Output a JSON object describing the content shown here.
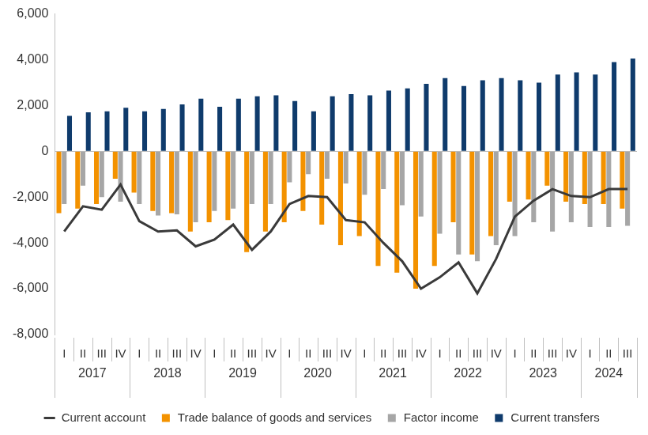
{
  "chart_data": {
    "type": "bar",
    "categories": [
      "I",
      "II",
      "III",
      "IV",
      "I",
      "II",
      "III",
      "IV",
      "I",
      "II",
      "III",
      "IV",
      "I",
      "II",
      "III",
      "IV",
      "I",
      "II",
      "III",
      "IV",
      "I",
      "II",
      "III",
      "IV",
      "I",
      "II",
      "III",
      "IV",
      "I",
      "II",
      "III"
    ],
    "category_groups": [
      {
        "label": "2017",
        "size": 4
      },
      {
        "label": "2018",
        "size": 4
      },
      {
        "label": "2019",
        "size": 4
      },
      {
        "label": "2020",
        "size": 4
      },
      {
        "label": "2021",
        "size": 4
      },
      {
        "label": "2022",
        "size": 4
      },
      {
        "label": "2023",
        "size": 4
      },
      {
        "label": "2024",
        "size": 3
      }
    ],
    "series": [
      {
        "name": "Trade balance of goods and services",
        "type": "bar",
        "color": "#f39200",
        "values": [
          -2700,
          -2500,
          -2300,
          -1200,
          -1800,
          -2600,
          -2700,
          -3500,
          -3100,
          -3000,
          -4400,
          -3500,
          -3100,
          -2600,
          -3200,
          -4100,
          -3700,
          -5000,
          -5300,
          -6000,
          -5000,
          -3100,
          -4500,
          -3700,
          -2200,
          -2100,
          -1500,
          -2200,
          -2300,
          -2300,
          -2500
        ]
      },
      {
        "name": "Factor income",
        "type": "bar",
        "color": "#a6a6a6",
        "values": [
          -2300,
          -1500,
          -2000,
          -2200,
          -2300,
          -2800,
          -2750,
          -3100,
          -2600,
          -2500,
          -2300,
          -2300,
          -1350,
          -1000,
          -1200,
          -1400,
          -1900,
          -1650,
          -2350,
          -2850,
          -3600,
          -4500,
          -4800,
          -4100,
          -3700,
          -3100,
          -3500,
          -3100,
          -3300,
          -3300,
          -3250
        ]
      },
      {
        "name": "Current transfers",
        "type": "bar",
        "color": "#0f3b6c",
        "values": [
          1550,
          1700,
          1750,
          1900,
          1750,
          1850,
          2050,
          2300,
          1950,
          2300,
          2400,
          2450,
          2200,
          1750,
          2400,
          2500,
          2450,
          2650,
          2750,
          2950,
          3200,
          2850,
          3100,
          3200,
          3100,
          3000,
          3350,
          3450,
          3350,
          3900,
          4050
        ]
      },
      {
        "name": "Current account",
        "type": "line",
        "color": "#3a3a3a",
        "values": [
          -3500,
          -2400,
          -2550,
          -1450,
          -3050,
          -3500,
          -3450,
          -4150,
          -3850,
          -3200,
          -4300,
          -3500,
          -2300,
          -1950,
          -2000,
          -3000,
          -3100,
          -4000,
          -4800,
          -6000,
          -5500,
          -4850,
          -6200,
          -4700,
          -2850,
          -2150,
          -1650,
          -1950,
          -2000,
          -1650,
          -1650
        ]
      }
    ],
    "ylim": [
      -8000,
      6000
    ],
    "yticks": [
      {
        "value": -8000,
        "label": "-8,000"
      },
      {
        "value": -6000,
        "label": "-6,000"
      },
      {
        "value": -4000,
        "label": "-4,000"
      },
      {
        "value": -2000,
        "label": "-2,000"
      },
      0,
      {
        "value": 2000,
        "label": "2,000"
      },
      {
        "value": 4000,
        "label": "4,000"
      },
      {
        "value": 6000,
        "label": "6,000"
      }
    ],
    "grid": false,
    "legend": "bottom"
  }
}
